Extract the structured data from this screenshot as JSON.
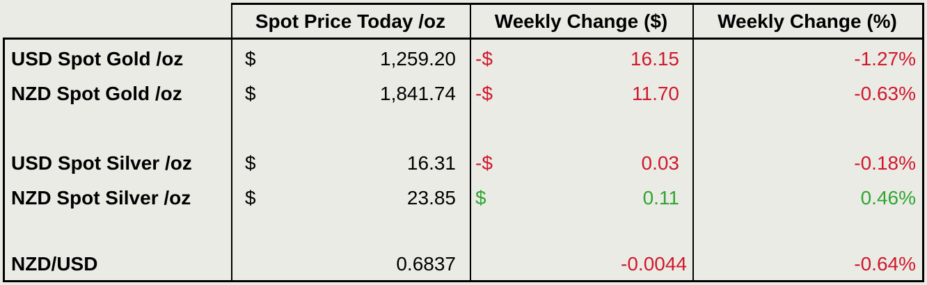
{
  "table": {
    "columns": [
      "Spot Price Today /oz",
      "Weekly Change ($)",
      "Weekly Change (%)"
    ],
    "rows": [
      {
        "label": "USD Spot Gold /oz",
        "price_symbol": "$",
        "price": "1,259.20",
        "change_symbol": "-$",
        "change": "16.15",
        "percent": "-1.27%",
        "color": "#d0182a"
      },
      {
        "label": "NZD Spot Gold /oz",
        "price_symbol": "$",
        "price": "1,841.74",
        "change_symbol": "-$",
        "change": "11.70",
        "percent": "-0.63%",
        "color": "#d0182a"
      },
      {
        "label": "USD Spot Silver /oz",
        "price_symbol": "$",
        "price": "16.31",
        "change_symbol": "-$",
        "change": "0.03",
        "percent": "-0.18%",
        "color": "#d0182a"
      },
      {
        "label": "NZD Spot Silver /oz",
        "price_symbol": "$",
        "price": "23.85",
        "change_symbol": "$",
        "change": "0.11",
        "percent": "0.46%",
        "color": "#2fa531"
      },
      {
        "label": "NZD/USD",
        "price": "0.6837",
        "change": "-0.0044",
        "percent": "-0.64%",
        "color": "#d0182a"
      }
    ]
  }
}
